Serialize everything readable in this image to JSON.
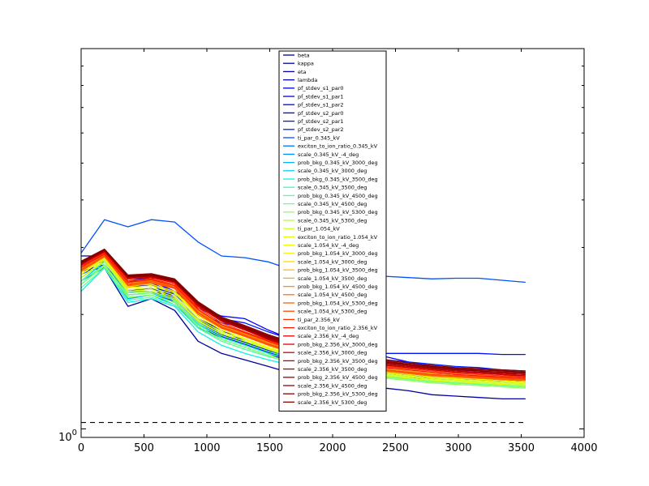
{
  "chart_data": {
    "type": "line",
    "title": "",
    "xlabel": "",
    "ylabel": "",
    "xlim": [
      0,
      4000
    ],
    "y_scale": "log",
    "y_tick_label": "10",
    "y_tick_exponent": "0",
    "xticks": [
      "0",
      "500",
      "1000",
      "1500",
      "2000",
      "2500",
      "3000",
      "3500",
      "4000"
    ],
    "x": [
      0,
      186,
      372,
      558,
      744,
      930,
      1116,
      1302,
      1488,
      1674,
      1860,
      2046,
      2232,
      2418,
      2604,
      2790,
      2976,
      3162,
      3348,
      3534
    ],
    "reference_line": {
      "style": "dashed",
      "color": "#000000",
      "x_start": 0,
      "x_end": 3534
    },
    "legend": {
      "placement": "upper-center"
    },
    "series": [
      {
        "name": "beta",
        "color": "#00008f",
        "values": [
          2.85,
          2.85,
          2.35,
          2.4,
          2.2,
          1.95,
          1.82,
          1.7,
          1.58,
          1.5,
          1.43,
          1.4,
          1.38,
          1.37,
          1.36,
          1.36,
          1.35,
          1.35,
          1.34,
          1.34
        ]
      },
      {
        "name": "kappa",
        "color": "#00009f",
        "values": [
          2.6,
          2.65,
          2.1,
          2.2,
          2.05,
          1.7,
          1.58,
          1.52,
          1.46,
          1.4,
          1.35,
          1.32,
          1.3,
          1.28,
          1.26,
          1.23,
          1.22,
          1.21,
          1.2,
          1.2
        ]
      },
      {
        "name": "eta",
        "color": "#0000af",
        "values": [
          2.7,
          2.75,
          2.3,
          2.35,
          2.15,
          1.85,
          1.74,
          1.67,
          1.58,
          1.52,
          1.48,
          1.45,
          1.42,
          1.4,
          1.38,
          1.37,
          1.36,
          1.35,
          1.34,
          1.34
        ]
      },
      {
        "name": "lambda",
        "color": "#0000bf",
        "values": [
          2.65,
          2.9,
          2.45,
          2.5,
          2.25,
          1.95,
          1.78,
          1.7,
          1.6,
          1.55,
          1.5,
          1.48,
          1.45,
          1.42,
          1.4,
          1.39,
          1.38,
          1.37,
          1.36,
          1.35
        ]
      },
      {
        "name": "pf_stdev_s1_par0",
        "color": "#0000cf",
        "values": [
          2.5,
          2.75,
          2.3,
          2.35,
          2.2,
          1.9,
          1.76,
          1.68,
          1.6,
          1.53,
          1.49,
          1.47,
          1.44,
          1.41,
          1.39,
          1.38,
          1.37,
          1.36,
          1.35,
          1.34
        ]
      },
      {
        "name": "pf_stdev_s1_par1",
        "color": "#0000df",
        "values": [
          2.55,
          2.8,
          2.35,
          2.4,
          2.22,
          1.92,
          1.77,
          1.69,
          1.61,
          1.54,
          1.5,
          1.47,
          1.44,
          1.42,
          1.4,
          1.38,
          1.37,
          1.36,
          1.35,
          1.34
        ]
      },
      {
        "name": "pf_stdev_s1_par2",
        "color": "#0000ef",
        "values": [
          2.6,
          2.7,
          2.3,
          2.3,
          2.15,
          1.88,
          1.75,
          1.67,
          1.59,
          1.53,
          1.49,
          1.46,
          1.43,
          1.41,
          1.39,
          1.38,
          1.37,
          1.36,
          1.35,
          1.34
        ]
      },
      {
        "name": "pf_stdev_s2_par0",
        "color": "#0000ff",
        "values": [
          2.75,
          2.9,
          2.45,
          2.45,
          2.3,
          2.1,
          1.98,
          1.95,
          1.82,
          1.72,
          1.65,
          1.6,
          1.58,
          1.55,
          1.5,
          1.46,
          1.44,
          1.42,
          1.39,
          1.37
        ]
      },
      {
        "name": "pf_stdev_s2_par1",
        "color": "#0010ff",
        "values": [
          2.7,
          2.85,
          2.4,
          2.42,
          2.28,
          2.08,
          1.95,
          1.9,
          1.8,
          1.72,
          1.66,
          1.63,
          1.6,
          1.58,
          1.58,
          1.58,
          1.58,
          1.58,
          1.57,
          1.57
        ]
      },
      {
        "name": "pf_stdev_s2_par2",
        "color": "#0020ff",
        "values": [
          2.65,
          2.8,
          2.38,
          2.4,
          2.25,
          2.02,
          1.9,
          1.85,
          1.75,
          1.68,
          1.62,
          1.58,
          1.55,
          1.52,
          1.5,
          1.48,
          1.46,
          1.45,
          1.43,
          1.42
        ]
      },
      {
        "name": "ti_par_0.345_kV",
        "color": "#0050ff",
        "values": [
          2.9,
          3.55,
          3.4,
          3.55,
          3.5,
          3.1,
          2.85,
          2.82,
          2.75,
          2.62,
          2.62,
          2.58,
          2.56,
          2.52,
          2.5,
          2.48,
          2.49,
          2.49,
          2.46,
          2.43
        ]
      },
      {
        "name": "exciton_to_ion_ratio_0.345_kV",
        "color": "#0070ff",
        "values": [
          2.55,
          2.7,
          2.28,
          2.3,
          2.18,
          1.9,
          1.76,
          1.68,
          1.6,
          1.54,
          1.5,
          1.47,
          1.44,
          1.42,
          1.4,
          1.38,
          1.37,
          1.36,
          1.35,
          1.34
        ]
      },
      {
        "name": "scale_0.345_kV_-4_deg",
        "color": "#0090ff",
        "values": [
          2.45,
          2.65,
          2.25,
          2.28,
          2.15,
          1.88,
          1.74,
          1.66,
          1.58,
          1.52,
          1.48,
          1.45,
          1.42,
          1.4,
          1.38,
          1.36,
          1.35,
          1.34,
          1.33,
          1.32
        ]
      },
      {
        "name": "prob_bkg_0.345_kV_3000_deg",
        "color": "#00b0ff",
        "values": [
          2.4,
          2.7,
          2.2,
          2.25,
          2.12,
          1.85,
          1.72,
          1.64,
          1.56,
          1.5,
          1.46,
          1.43,
          1.4,
          1.38,
          1.36,
          1.34,
          1.33,
          1.32,
          1.31,
          1.3
        ]
      },
      {
        "name": "scale_0.345_kV_3000_deg",
        "color": "#00d0ff",
        "values": [
          2.45,
          2.75,
          2.3,
          2.3,
          2.2,
          1.92,
          1.78,
          1.7,
          1.62,
          1.55,
          1.5,
          1.46,
          1.43,
          1.4,
          1.38,
          1.36,
          1.35,
          1.34,
          1.33,
          1.32
        ]
      },
      {
        "name": "prob_bkg_0.345_kV_3500_deg",
        "color": "#10f0e0",
        "values": [
          2.3,
          2.65,
          2.15,
          2.2,
          2.1,
          1.8,
          1.66,
          1.58,
          1.52,
          1.47,
          1.44,
          1.42,
          1.4,
          1.38,
          1.36,
          1.34,
          1.32,
          1.31,
          1.3,
          1.29
        ]
      },
      {
        "name": "scale_0.345_kV_3500_deg",
        "color": "#30ffc0",
        "values": [
          2.4,
          2.7,
          2.22,
          2.25,
          2.15,
          1.88,
          1.74,
          1.66,
          1.58,
          1.52,
          1.47,
          1.44,
          1.41,
          1.38,
          1.36,
          1.34,
          1.33,
          1.32,
          1.31,
          1.3
        ]
      },
      {
        "name": "prob_bkg_0.345_kV_4500_deg",
        "color": "#50ffa0",
        "values": [
          2.35,
          2.65,
          2.18,
          2.22,
          2.12,
          1.84,
          1.7,
          1.62,
          1.55,
          1.5,
          1.46,
          1.42,
          1.39,
          1.37,
          1.35,
          1.33,
          1.32,
          1.31,
          1.3,
          1.29
        ]
      },
      {
        "name": "scale_0.345_kV_4500_deg",
        "color": "#70ff80",
        "values": [
          2.45,
          2.7,
          2.25,
          2.28,
          2.18,
          1.9,
          1.76,
          1.68,
          1.6,
          1.53,
          1.48,
          1.44,
          1.4,
          1.37,
          1.35,
          1.33,
          1.32,
          1.31,
          1.3,
          1.29
        ]
      },
      {
        "name": "prob_bkg_0.345_kV_5300_deg",
        "color": "#90ff60",
        "values": [
          2.4,
          2.68,
          2.22,
          2.25,
          2.15,
          1.86,
          1.72,
          1.64,
          1.56,
          1.5,
          1.46,
          1.42,
          1.38,
          1.36,
          1.34,
          1.32,
          1.31,
          1.3,
          1.29,
          1.28
        ]
      },
      {
        "name": "scale_0.345_kV_5300_deg",
        "color": "#b0ff40",
        "values": [
          2.5,
          2.75,
          2.28,
          2.3,
          2.2,
          1.92,
          1.78,
          1.7,
          1.62,
          1.54,
          1.49,
          1.45,
          1.41,
          1.38,
          1.36,
          1.34,
          1.33,
          1.32,
          1.31,
          1.3
        ]
      },
      {
        "name": "ti_par_1.054_kV",
        "color": "#d0ff20",
        "values": [
          2.55,
          2.8,
          2.32,
          2.35,
          2.25,
          1.95,
          1.8,
          1.72,
          1.63,
          1.56,
          1.5,
          1.46,
          1.42,
          1.39,
          1.37,
          1.35,
          1.34,
          1.33,
          1.32,
          1.31
        ]
      },
      {
        "name": "exciton_to_ion_ratio_1.054_kV",
        "color": "#e0ff10",
        "values": [
          2.5,
          2.78,
          2.3,
          2.33,
          2.22,
          1.93,
          1.78,
          1.7,
          1.62,
          1.55,
          1.49,
          1.45,
          1.41,
          1.38,
          1.36,
          1.34,
          1.33,
          1.32,
          1.31,
          1.3
        ]
      },
      {
        "name": "scale_1.054_kV_-4_deg",
        "color": "#f0ff00",
        "values": [
          2.55,
          2.82,
          2.35,
          2.38,
          2.28,
          1.98,
          1.82,
          1.73,
          1.64,
          1.57,
          1.51,
          1.47,
          1.43,
          1.4,
          1.38,
          1.36,
          1.35,
          1.34,
          1.33,
          1.32
        ]
      },
      {
        "name": "prob_bkg_1.054_kV_3000_deg",
        "color": "#ffee00",
        "values": [
          2.6,
          2.85,
          2.38,
          2.4,
          2.3,
          2.0,
          1.84,
          1.75,
          1.66,
          1.58,
          1.52,
          1.48,
          1.44,
          1.41,
          1.39,
          1.37,
          1.36,
          1.35,
          1.34,
          1.33
        ]
      },
      {
        "name": "scale_1.054_kV_3000_deg",
        "color": "#ffd800",
        "values": [
          2.58,
          2.83,
          2.36,
          2.42,
          2.35,
          2.02,
          1.85,
          1.76,
          1.67,
          1.59,
          1.53,
          1.49,
          1.45,
          1.42,
          1.4,
          1.38,
          1.37,
          1.36,
          1.35,
          1.34
        ]
      },
      {
        "name": "prob_bkg_1.054_kV_3500_deg",
        "color": "#ffc000",
        "values": [
          2.62,
          2.86,
          2.4,
          2.45,
          2.38,
          2.04,
          1.86,
          1.77,
          1.68,
          1.6,
          1.54,
          1.5,
          1.46,
          1.43,
          1.41,
          1.39,
          1.38,
          1.37,
          1.36,
          1.35
        ]
      },
      {
        "name": "scale_1.054_kV_3500_deg",
        "color": "#ffa800",
        "values": [
          2.6,
          2.84,
          2.38,
          2.44,
          2.36,
          2.02,
          1.85,
          1.76,
          1.67,
          1.59,
          1.53,
          1.49,
          1.45,
          1.42,
          1.4,
          1.38,
          1.37,
          1.36,
          1.35,
          1.34
        ]
      },
      {
        "name": "prob_bkg_1.054_kV_4500_deg",
        "color": "#ff9000",
        "values": [
          2.65,
          2.88,
          2.42,
          2.46,
          2.38,
          2.05,
          1.87,
          1.78,
          1.69,
          1.61,
          1.55,
          1.51,
          1.47,
          1.44,
          1.42,
          1.4,
          1.39,
          1.38,
          1.37,
          1.36
        ]
      },
      {
        "name": "scale_1.054_kV_4500_deg",
        "color": "#ff7800",
        "values": [
          2.63,
          2.86,
          2.4,
          2.45,
          2.36,
          2.03,
          1.86,
          1.77,
          1.68,
          1.6,
          1.54,
          1.5,
          1.46,
          1.43,
          1.41,
          1.39,
          1.38,
          1.37,
          1.36,
          1.35
        ]
      },
      {
        "name": "prob_bkg_1.054_kV_5300_deg",
        "color": "#ff6000",
        "values": [
          2.6,
          2.84,
          2.38,
          2.42,
          2.34,
          2.0,
          1.84,
          1.75,
          1.66,
          1.59,
          1.53,
          1.49,
          1.45,
          1.42,
          1.4,
          1.38,
          1.37,
          1.36,
          1.35,
          1.34
        ]
      },
      {
        "name": "scale_1.054_kV_5300_deg",
        "color": "#ff4800",
        "values": [
          2.62,
          2.85,
          2.4,
          2.44,
          2.35,
          2.02,
          1.85,
          1.76,
          1.67,
          1.6,
          1.54,
          1.5,
          1.46,
          1.43,
          1.41,
          1.39,
          1.38,
          1.37,
          1.36,
          1.35
        ]
      },
      {
        "name": "ti_par_2.356_kV",
        "color": "#ff3000",
        "values": [
          2.68,
          2.9,
          2.45,
          2.48,
          2.4,
          2.08,
          1.9,
          1.8,
          1.71,
          1.63,
          1.57,
          1.53,
          1.49,
          1.46,
          1.44,
          1.42,
          1.4,
          1.39,
          1.38,
          1.37
        ]
      },
      {
        "name": "exciton_to_ion_ratio_2.356_kV",
        "color": "#ff1800",
        "values": [
          2.66,
          2.88,
          2.43,
          2.47,
          2.38,
          2.06,
          1.88,
          1.79,
          1.7,
          1.62,
          1.56,
          1.52,
          1.48,
          1.45,
          1.43,
          1.41,
          1.39,
          1.38,
          1.37,
          1.36
        ]
      },
      {
        "name": "scale_2.356_kV_-4_deg",
        "color": "#f00000",
        "values": [
          2.7,
          2.92,
          2.48,
          2.5,
          2.42,
          2.1,
          1.92,
          1.82,
          1.72,
          1.64,
          1.58,
          1.54,
          1.5,
          1.47,
          1.45,
          1.43,
          1.41,
          1.4,
          1.39,
          1.38
        ]
      },
      {
        "name": "prob_bkg_2.356_kV_3000_deg",
        "color": "#e00000",
        "values": [
          2.72,
          2.94,
          2.5,
          2.52,
          2.44,
          2.12,
          1.93,
          1.83,
          1.73,
          1.65,
          1.59,
          1.55,
          1.51,
          1.48,
          1.46,
          1.44,
          1.42,
          1.41,
          1.4,
          1.39
        ]
      },
      {
        "name": "scale_2.356_kV_3000_deg",
        "color": "#d00000",
        "values": [
          2.7,
          2.93,
          2.48,
          2.51,
          2.43,
          2.11,
          1.92,
          1.82,
          1.72,
          1.64,
          1.58,
          1.54,
          1.5,
          1.47,
          1.45,
          1.43,
          1.41,
          1.4,
          1.39,
          1.38
        ]
      },
      {
        "name": "prob_bkg_2.356_kV_3500_deg",
        "color": "#c00000",
        "values": [
          2.74,
          2.95,
          2.52,
          2.54,
          2.46,
          2.14,
          1.95,
          1.85,
          1.75,
          1.67,
          1.61,
          1.57,
          1.53,
          1.5,
          1.47,
          1.45,
          1.43,
          1.42,
          1.41,
          1.4
        ]
      },
      {
        "name": "scale_2.356_kV_3500_deg",
        "color": "#b00000",
        "values": [
          2.72,
          2.94,
          2.5,
          2.52,
          2.44,
          2.12,
          1.93,
          1.83,
          1.73,
          1.65,
          1.59,
          1.55,
          1.51,
          1.48,
          1.46,
          1.44,
          1.42,
          1.41,
          1.4,
          1.39
        ]
      },
      {
        "name": "prob_bkg_2.356_kV_4500_deg",
        "color": "#a00000",
        "values": [
          2.75,
          2.96,
          2.53,
          2.55,
          2.47,
          2.15,
          1.96,
          1.86,
          1.76,
          1.68,
          1.62,
          1.58,
          1.54,
          1.51,
          1.48,
          1.46,
          1.44,
          1.43,
          1.42,
          1.41
        ]
      },
      {
        "name": "scale_2.356_kV_4500_deg",
        "color": "#900000",
        "values": [
          2.73,
          2.95,
          2.51,
          2.53,
          2.45,
          2.13,
          1.94,
          1.84,
          1.74,
          1.66,
          1.6,
          1.56,
          1.52,
          1.49,
          1.47,
          1.45,
          1.43,
          1.42,
          1.41,
          1.4
        ]
      },
      {
        "name": "prob_bkg_2.356_kV_5300_deg",
        "color": "#880000",
        "values": [
          2.76,
          2.97,
          2.54,
          2.56,
          2.48,
          2.16,
          1.97,
          1.87,
          1.77,
          1.69,
          1.63,
          1.59,
          1.55,
          1.52,
          1.49,
          1.47,
          1.45,
          1.44,
          1.43,
          1.42
        ]
      },
      {
        "name": "scale_2.356_kV_5300_deg",
        "color": "#800000",
        "values": [
          2.74,
          2.96,
          2.52,
          2.54,
          2.46,
          2.14,
          1.95,
          1.85,
          1.75,
          1.67,
          1.61,
          1.57,
          1.53,
          1.5,
          1.48,
          1.46,
          1.44,
          1.43,
          1.42,
          1.41
        ]
      }
    ]
  }
}
